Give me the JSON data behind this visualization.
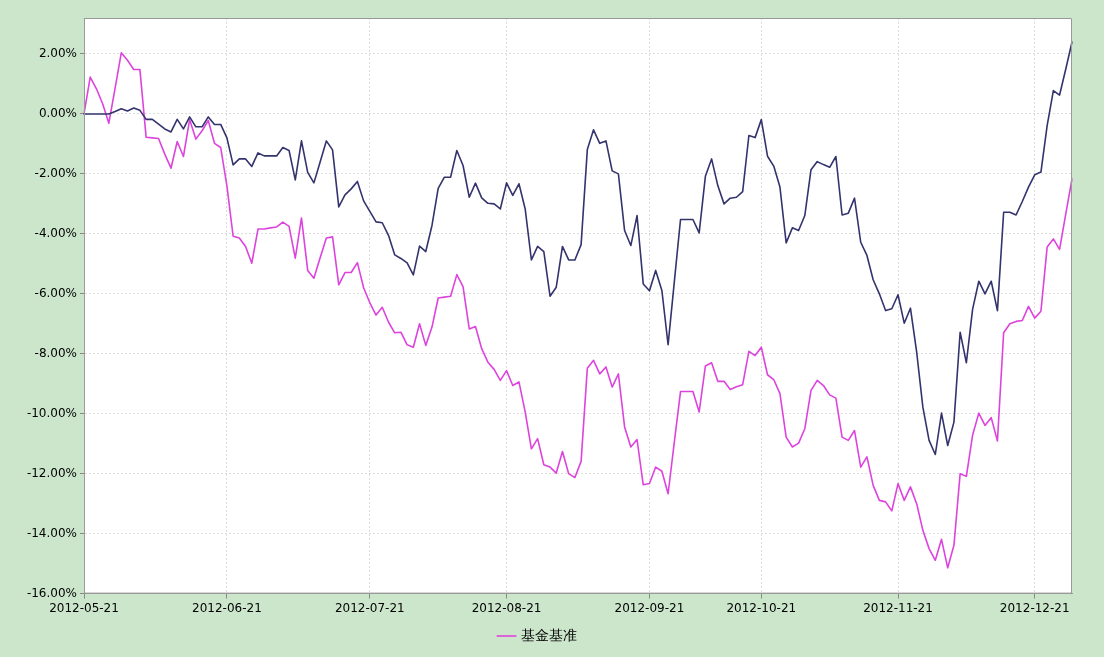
{
  "chart_data": {
    "type": "line",
    "categories": [
      "2012-05-21",
      null,
      null,
      null,
      null,
      null,
      null,
      null,
      null,
      null,
      null,
      null,
      null,
      null,
      null,
      null,
      null,
      null,
      null,
      null,
      null,
      null,
      null,
      "2012-06-21",
      null,
      null,
      null,
      null,
      null,
      null,
      null,
      null,
      null,
      null,
      null,
      null,
      null,
      null,
      null,
      null,
      null,
      null,
      null,
      null,
      null,
      null,
      "2012-07-21",
      null,
      null,
      null,
      null,
      null,
      null,
      null,
      null,
      null,
      null,
      null,
      null,
      null,
      null,
      null,
      null,
      null,
      null,
      null,
      null,
      null,
      "2012-08-21",
      null,
      null,
      null,
      null,
      null,
      null,
      null,
      null,
      null,
      null,
      null,
      null,
      null,
      null,
      null,
      null,
      null,
      null,
      null,
      null,
      null,
      null,
      "2012-09-21",
      null,
      null,
      null,
      null,
      null,
      null,
      null,
      null,
      null,
      null,
      null,
      null,
      null,
      null,
      null,
      null,
      null,
      "2012-10-21",
      null,
      null,
      null,
      null,
      null,
      null,
      null,
      null,
      null,
      null,
      null,
      null,
      null,
      null,
      null,
      null,
      null,
      null,
      null,
      null,
      null,
      "2012-11-21",
      null,
      null,
      null,
      null,
      null,
      null,
      null,
      null,
      null,
      null,
      null,
      null,
      null,
      null,
      null,
      null,
      null,
      null,
      null,
      null,
      null,
      "2012-12-21",
      null,
      null,
      null,
      null,
      null,
      null
    ],
    "ylim": [
      -16,
      3.2
    ],
    "yticks": [
      {
        "value": -16,
        "label": "-16.00%"
      },
      {
        "value": -14,
        "label": "-14.00%"
      },
      {
        "value": -12,
        "label": "-12.00%"
      },
      {
        "value": -10,
        "label": "-10.00%"
      },
      {
        "value": -8,
        "label": "-8.00%"
      },
      {
        "value": -6,
        "label": "-6.00%"
      },
      {
        "value": -4,
        "label": "-4.00%"
      },
      {
        "value": -2,
        "label": "-2.00%"
      },
      {
        "value": 0,
        "label": "0.00%"
      },
      {
        "value": 2,
        "label": "2.00%"
      }
    ],
    "grid": true,
    "legend": "bottom",
    "marker": "none",
    "line_style": "solid",
    "series": [
      {
        "color": "#33336e",
        "values": [
          0,
          0,
          0,
          0,
          0,
          0.08,
          0.17,
          0.1,
          0.2,
          0.12,
          -0.18,
          -0.18,
          -0.34,
          -0.5,
          -0.6,
          -0.18,
          -0.5,
          -0.1,
          -0.43,
          -0.43,
          -0.1,
          -0.35,
          -0.35,
          -0.8,
          -1.7,
          -1.5,
          -1.5,
          -1.75,
          -1.3,
          -1.4,
          -1.4,
          -1.4,
          -1.12,
          -1.22,
          -2.2,
          -0.9,
          -1.95,
          -2.3,
          -1.6,
          -0.9,
          -1.2,
          -3.1,
          -2.7,
          -2.5,
          -2.25,
          -2.9,
          -3.25,
          -3.6,
          -3.63,
          -4.05,
          -4.7,
          -4.82,
          -4.97,
          -5.37,
          -4.41,
          -4.59,
          -3.72,
          -2.48,
          -2.11,
          -2.11,
          -1.22,
          -1.72,
          -2.78,
          -2.31,
          -2.8,
          -2.98,
          -3.0,
          -3.17,
          -2.3,
          -2.72,
          -2.33,
          -3.17,
          -4.87,
          -4.42,
          -4.59,
          -6.08,
          -5.78,
          -4.42,
          -4.87,
          -4.87,
          -4.36,
          -1.19,
          -0.53,
          -0.98,
          -0.9,
          -1.9,
          -2.0,
          -3.89,
          -4.39,
          -3.39,
          -5.67,
          -5.9,
          -5.22,
          -5.89,
          -7.7,
          -5.6,
          -3.52,
          -3.52,
          -3.52,
          -3.97,
          -2.08,
          -1.5,
          -2.39,
          -3.0,
          -2.81,
          -2.78,
          -2.59,
          -0.72,
          -0.79,
          -0.19,
          -1.41,
          -1.74,
          -2.44,
          -4.3,
          -3.8,
          -3.89,
          -3.39,
          -1.86,
          -1.59,
          -1.69,
          -1.78,
          -1.42,
          -3.37,
          -3.31,
          -2.81,
          -4.28,
          -4.72,
          -5.53,
          -6.0,
          -6.56,
          -6.5,
          -6.03,
          -6.98,
          -6.48,
          -7.94,
          -9.78,
          -10.89,
          -11.36,
          -9.98,
          -11.06,
          -10.28,
          -7.28,
          -8.3,
          -6.52,
          -5.58,
          -6.0,
          -5.58,
          -6.56,
          -3.28,
          -3.28,
          -3.37,
          -2.92,
          -2.44,
          -2.03,
          -1.94,
          -0.39,
          0.78,
          0.63,
          1.5,
          2.4
        ]
      },
      {
        "name": "基金基准",
        "color": "#dd44dd",
        "values": [
          0,
          1.23,
          0.84,
          0.34,
          -0.31,
          0.85,
          2.04,
          1.79,
          1.48,
          1.48,
          -0.78,
          -0.8,
          -0.82,
          -1.34,
          -1.81,
          -0.92,
          -1.42,
          -0.19,
          -0.84,
          -0.56,
          -0.22,
          -0.98,
          -1.12,
          -2.4,
          -4.08,
          -4.14,
          -4.42,
          -4.98,
          -3.84,
          -3.84,
          -3.8,
          -3.77,
          -3.61,
          -3.75,
          -4.81,
          -3.47,
          -5.22,
          -5.48,
          -4.8,
          -4.14,
          -4.1,
          -5.7,
          -5.29,
          -5.29,
          -4.96,
          -5.8,
          -6.3,
          -6.71,
          -6.45,
          -6.94,
          -7.3,
          -7.28,
          -7.7,
          -7.78,
          -7.0,
          -7.72,
          -7.11,
          -6.14,
          -6.11,
          -6.08,
          -5.36,
          -5.76,
          -7.17,
          -7.09,
          -7.83,
          -8.28,
          -8.52,
          -8.89,
          -8.56,
          -9.06,
          -8.94,
          -9.94,
          -11.17,
          -10.83,
          -11.7,
          -11.78,
          -11.98,
          -11.26,
          -12.0,
          -12.13,
          -11.59,
          -8.48,
          -8.22,
          -8.67,
          -8.44,
          -9.11,
          -8.67,
          -10.44,
          -11.11,
          -10.86,
          -12.37,
          -12.33,
          -11.78,
          -11.92,
          -12.67,
          -10.95,
          -9.26,
          -9.26,
          -9.26,
          -9.94,
          -8.41,
          -8.3,
          -8.92,
          -8.92,
          -9.19,
          -9.1,
          -9.03,
          -7.92,
          -8.06,
          -7.78,
          -8.7,
          -8.86,
          -9.33,
          -10.78,
          -11.11,
          -10.98,
          -10.5,
          -9.22,
          -8.89,
          -9.06,
          -9.37,
          -9.48,
          -10.78,
          -10.89,
          -10.56,
          -11.78,
          -11.44,
          -12.39,
          -12.89,
          -12.94,
          -13.24,
          -12.33,
          -12.89,
          -12.44,
          -13.0,
          -13.89,
          -14.5,
          -14.89,
          -14.19,
          -15.14,
          -14.39,
          -12.0,
          -12.09,
          -10.72,
          -9.98,
          -10.39,
          -10.13,
          -10.91,
          -7.3,
          -7.0,
          -6.92,
          -6.89,
          -6.42,
          -6.81,
          -6.58,
          -4.44,
          -4.17,
          -4.52,
          -3.33,
          -2.17
        ]
      }
    ]
  }
}
